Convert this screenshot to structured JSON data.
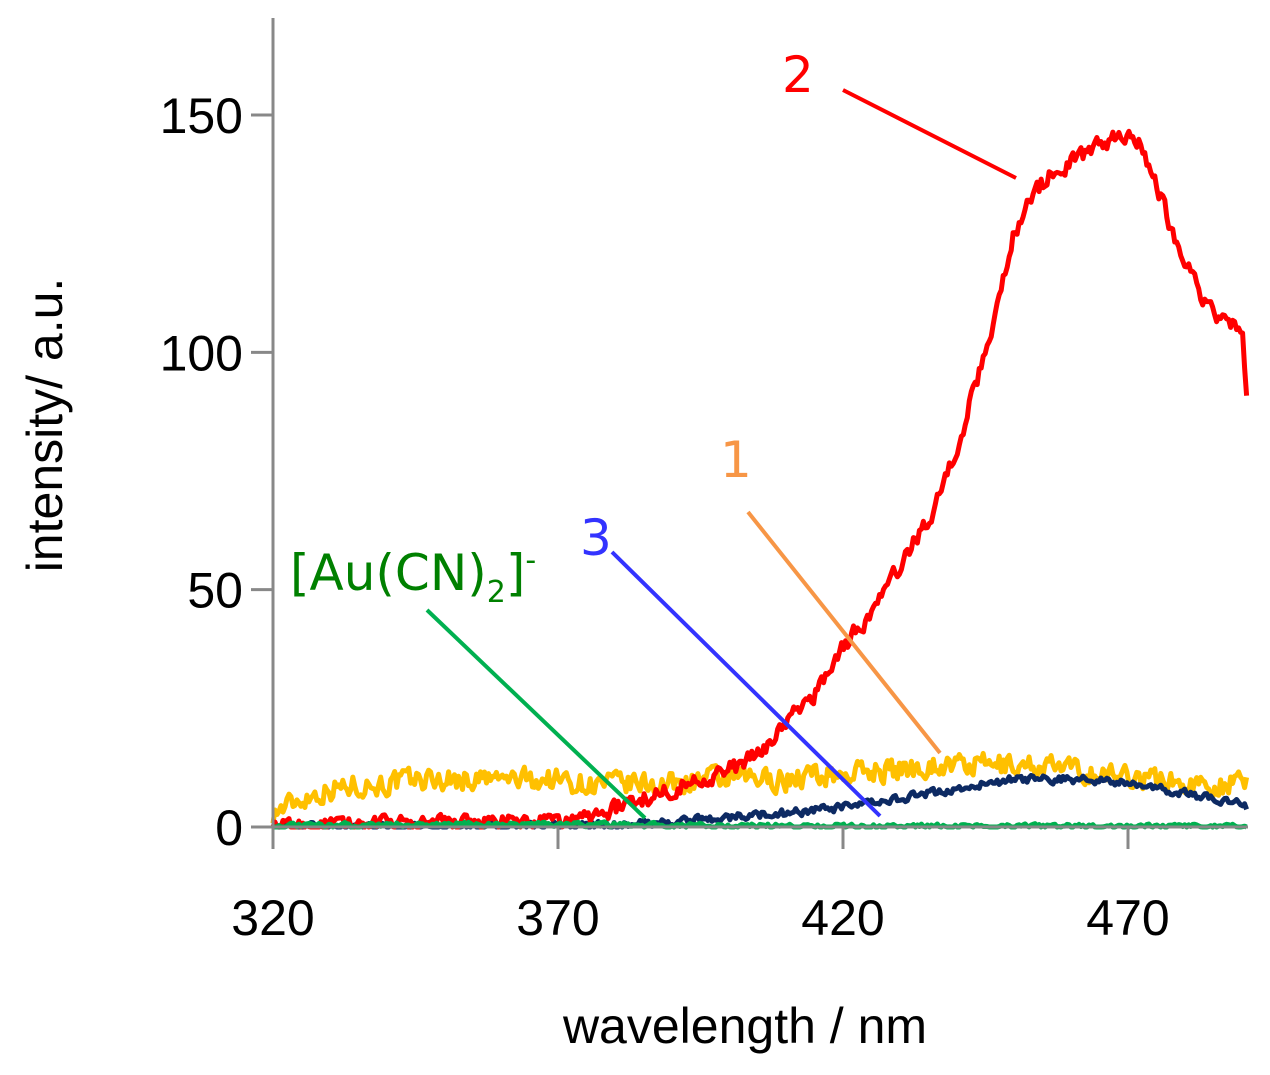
{
  "chart_data": {
    "type": "line",
    "title": "",
    "xlabel": "wavelength / nm",
    "ylabel": "intensity/ a.u.",
    "xlim": [
      320,
      491
    ],
    "ylim": [
      0,
      170
    ],
    "xticks": [
      320,
      370,
      420,
      470
    ],
    "yticks": [
      0,
      50,
      100,
      150
    ],
    "xtick_labels": [
      "320",
      "370",
      "420",
      "470"
    ],
    "ytick_labels": [
      "0",
      "50",
      "100",
      "150"
    ],
    "grid": false,
    "series": [
      {
        "key": "yellow",
        "name": "1",
        "color": "#ffc000",
        "label_color": "#f79646",
        "noise": 2.2,
        "points": [
          [
            320,
            3
          ],
          [
            325,
            6
          ],
          [
            330,
            8
          ],
          [
            335,
            9
          ],
          [
            340,
            9
          ],
          [
            345,
            10
          ],
          [
            350,
            10
          ],
          [
            355,
            10
          ],
          [
            360,
            10
          ],
          [
            365,
            10
          ],
          [
            370,
            10
          ],
          [
            375,
            9
          ],
          [
            380,
            9
          ],
          [
            385,
            9
          ],
          [
            390,
            9
          ],
          [
            395,
            10
          ],
          [
            400,
            10
          ],
          [
            405,
            10
          ],
          [
            410,
            10
          ],
          [
            415,
            11
          ],
          [
            420,
            11
          ],
          [
            425,
            12
          ],
          [
            430,
            12
          ],
          [
            435,
            13
          ],
          [
            440,
            13
          ],
          [
            445,
            13
          ],
          [
            450,
            13
          ],
          [
            455,
            13
          ],
          [
            460,
            12
          ],
          [
            465,
            11
          ],
          [
            470,
            11
          ],
          [
            475,
            10
          ],
          [
            480,
            9
          ],
          [
            485,
            9
          ],
          [
            490,
            9
          ],
          [
            491,
            9
          ]
        ]
      },
      {
        "key": "red",
        "name": "2",
        "color": "#ff0000",
        "label_color": "#ff0000",
        "noise": 1.6,
        "points": [
          [
            320,
            0
          ],
          [
            330,
            0.3
          ],
          [
            340,
            0.5
          ],
          [
            350,
            0.6
          ],
          [
            360,
            0.8
          ],
          [
            370,
            1
          ],
          [
            375,
            2
          ],
          [
            380,
            4
          ],
          [
            385,
            6
          ],
          [
            390,
            8
          ],
          [
            395,
            10
          ],
          [
            400,
            12
          ],
          [
            405,
            15
          ],
          [
            410,
            22
          ],
          [
            415,
            28
          ],
          [
            420,
            38
          ],
          [
            425,
            45
          ],
          [
            430,
            55
          ],
          [
            435,
            65
          ],
          [
            437,
            70
          ],
          [
            440,
            80
          ],
          [
            443,
            92
          ],
          [
            445,
            100
          ],
          [
            447,
            110
          ],
          [
            450,
            125
          ],
          [
            453,
            133
          ],
          [
            456,
            137
          ],
          [
            460,
            140
          ],
          [
            465,
            144
          ],
          [
            470,
            146
          ],
          [
            472,
            145
          ],
          [
            475,
            135
          ],
          [
            478,
            125
          ],
          [
            480,
            120
          ],
          [
            483,
            112
          ],
          [
            485,
            108
          ],
          [
            488,
            106
          ],
          [
            490,
            104
          ],
          [
            491,
            90
          ]
        ]
      },
      {
        "key": "navy",
        "name": "3",
        "color": "#0d2a63",
        "label_color": "#3333ff",
        "noise": 0.8,
        "points": [
          [
            320,
            0
          ],
          [
            340,
            0
          ],
          [
            360,
            0
          ],
          [
            370,
            0
          ],
          [
            380,
            0.5
          ],
          [
            390,
            1
          ],
          [
            400,
            2
          ],
          [
            410,
            3
          ],
          [
            420,
            4
          ],
          [
            425,
            5
          ],
          [
            430,
            6
          ],
          [
            435,
            7
          ],
          [
            440,
            8
          ],
          [
            445,
            9
          ],
          [
            450,
            10
          ],
          [
            455,
            10
          ],
          [
            460,
            10
          ],
          [
            465,
            10
          ],
          [
            470,
            9
          ],
          [
            475,
            8
          ],
          [
            480,
            7
          ],
          [
            485,
            6
          ],
          [
            490,
            5
          ],
          [
            491,
            4
          ]
        ]
      },
      {
        "key": "green",
        "name": "[Au(CN)2]-",
        "color": "#00b050",
        "label_color": "#008000",
        "noise": 0.45,
        "points": [
          [
            320,
            0.2
          ],
          [
            340,
            0.5
          ],
          [
            360,
            0.6
          ],
          [
            380,
            0.5
          ],
          [
            400,
            0.3
          ],
          [
            420,
            0.2
          ],
          [
            440,
            0.2
          ],
          [
            460,
            0.1
          ],
          [
            480,
            0.1
          ],
          [
            491,
            0.1
          ]
        ]
      }
    ],
    "annotations": [
      {
        "series": "red",
        "text": "2"
      },
      {
        "series": "yellow",
        "text": "1"
      },
      {
        "series": "navy",
        "text": "3"
      },
      {
        "series": "green",
        "text": "[Au(CN)",
        "sub": "2",
        "after": "]",
        "sup": "-"
      }
    ]
  }
}
